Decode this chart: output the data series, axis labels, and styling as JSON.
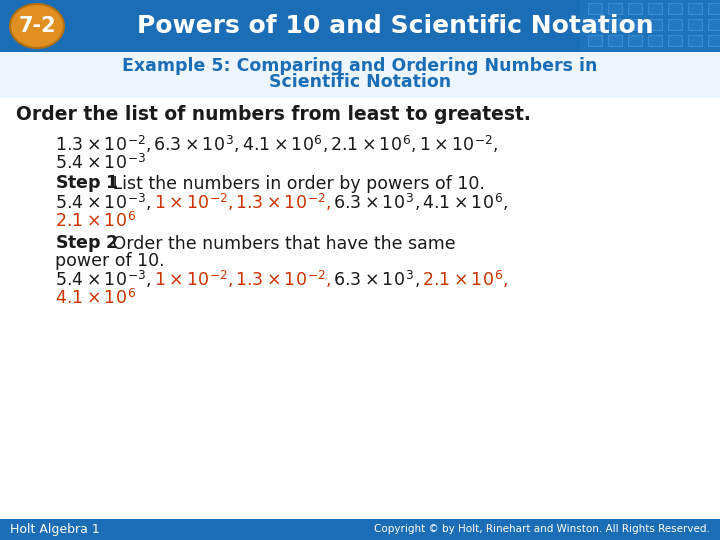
{
  "header_bg_color": "#1b6db5",
  "header_text_color": "#ffffff",
  "header_title": "Powers of 10 and Scientific Notation",
  "badge_text": "7-2",
  "badge_bg": "#e09020",
  "subtitle_color": "#1b6db5",
  "subtitle_line1": "Example 5: Comparing and Ordering Numbers in",
  "subtitle_line2": "Scientific Notation",
  "body_bg": "#ffffff",
  "black": "#1a1a1a",
  "orange": "#cc3300",
  "footer_bg": "#1b6db5",
  "footer_left": "Holt Algebra 1",
  "footer_right": "Copyright © by Holt, Rinehart and Winston. All Rights Reserved.",
  "footer_text_color": "#ffffff",
  "grid_color": "#3a8acc"
}
